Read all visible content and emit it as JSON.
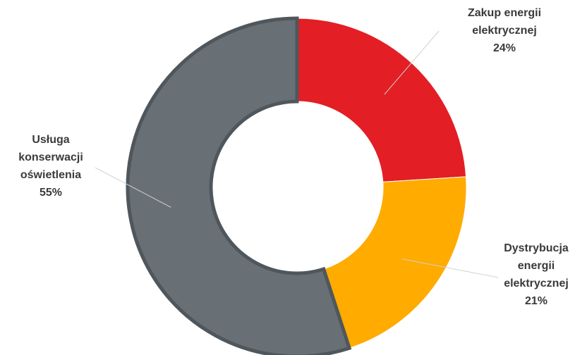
{
  "chart_data": {
    "type": "pie",
    "style": "donut",
    "start": "top",
    "direction": "clockwise",
    "slices": [
      {
        "label_lines": [
          "Zakup energii",
          "elektrycznej"
        ],
        "percent_text": "24%",
        "value": 24,
        "color": "#e31e24"
      },
      {
        "label_lines": [
          "Dystrybucja",
          "energii",
          "elektrycznej"
        ],
        "percent_text": "21%",
        "value": 21,
        "color": "#ffab00"
      },
      {
        "label_lines": [
          "Usługa",
          "konserwacji",
          "oświetlenia"
        ],
        "percent_text": "55%",
        "value": 55,
        "color": "#687075"
      }
    ]
  }
}
